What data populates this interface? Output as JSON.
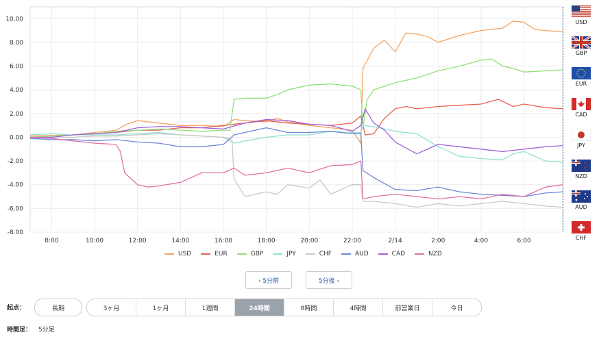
{
  "chart_data": {
    "type": "line",
    "ylim": [
      -8,
      11
    ],
    "y_ticks": [
      "10.00",
      "8.00",
      "6.00",
      "4.00",
      "2.00",
      "0.00",
      "-2.00",
      "-4.00",
      "-6.00",
      "-8.00"
    ],
    "x_ticks": [
      "8:00",
      "10:00",
      "12:00",
      "14:00",
      "16:00",
      "18:00",
      "20:00",
      "22:00",
      "2/14",
      "2:00",
      "4:00",
      "6:00"
    ],
    "x_range_hours": [
      7,
      31.8
    ],
    "grid": true,
    "series": [
      {
        "name": "USD",
        "color": "#f4a460",
        "points": [
          [
            7,
            0.1
          ],
          [
            9,
            0.2
          ],
          [
            10,
            0.4
          ],
          [
            11,
            0.6
          ],
          [
            11.5,
            1.1
          ],
          [
            12,
            1.4
          ],
          [
            13,
            1.2
          ],
          [
            14,
            1.0
          ],
          [
            15,
            1.0
          ],
          [
            16,
            0.9
          ],
          [
            16.5,
            1.5
          ],
          [
            17,
            1.4
          ],
          [
            18,
            1.3
          ],
          [
            18.5,
            1.6
          ],
          [
            19,
            1.3
          ],
          [
            20,
            1.0
          ],
          [
            21,
            0.8
          ],
          [
            22,
            0.6
          ],
          [
            22.4,
            -0.5
          ],
          [
            22.5,
            5.8
          ],
          [
            23,
            7.5
          ],
          [
            23.5,
            8.2
          ],
          [
            24,
            7.2
          ],
          [
            24.5,
            8.8
          ],
          [
            25,
            8.7
          ],
          [
            25.5,
            8.5
          ],
          [
            26,
            8.0
          ],
          [
            27,
            8.6
          ],
          [
            28,
            9.0
          ],
          [
            29,
            9.2
          ],
          [
            29.5,
            9.8
          ],
          [
            30,
            9.7
          ],
          [
            30.5,
            9.1
          ],
          [
            31,
            9.0
          ],
          [
            31.8,
            8.9
          ]
        ]
      },
      {
        "name": "EUR",
        "color": "#e46050",
        "points": [
          [
            7,
            0.0
          ],
          [
            9,
            0.2
          ],
          [
            10,
            0.3
          ],
          [
            11,
            0.4
          ],
          [
            12,
            0.6
          ],
          [
            13,
            0.6
          ],
          [
            14,
            0.8
          ],
          [
            15,
            0.8
          ],
          [
            16,
            1.0
          ],
          [
            17,
            1.2
          ],
          [
            18,
            1.4
          ],
          [
            19,
            1.2
          ],
          [
            20,
            1.1
          ],
          [
            21,
            1.0
          ],
          [
            22,
            1.2
          ],
          [
            22.4,
            1.8
          ],
          [
            22.6,
            0.2
          ],
          [
            23,
            0.3
          ],
          [
            23.5,
            1.6
          ],
          [
            24,
            2.4
          ],
          [
            24.5,
            2.6
          ],
          [
            25,
            2.4
          ],
          [
            26,
            2.6
          ],
          [
            27,
            2.7
          ],
          [
            28,
            2.8
          ],
          [
            28.8,
            3.2
          ],
          [
            29.5,
            2.6
          ],
          [
            30,
            2.8
          ],
          [
            31,
            2.5
          ],
          [
            31.8,
            2.4
          ]
        ]
      },
      {
        "name": "GBP",
        "color": "#8fe07a",
        "points": [
          [
            7,
            0.0
          ],
          [
            9,
            0.2
          ],
          [
            10,
            0.3
          ],
          [
            11,
            0.5
          ],
          [
            12,
            0.6
          ],
          [
            13,
            0.7
          ],
          [
            14,
            0.6
          ],
          [
            15,
            0.5
          ],
          [
            16,
            0.6
          ],
          [
            16.3,
            0.6
          ],
          [
            16.5,
            3.2
          ],
          [
            17,
            3.3
          ],
          [
            18,
            3.3
          ],
          [
            18.5,
            3.6
          ],
          [
            19,
            4.0
          ],
          [
            20,
            4.4
          ],
          [
            21,
            4.5
          ],
          [
            22,
            4.3
          ],
          [
            22.4,
            4.0
          ],
          [
            22.5,
            0.8
          ],
          [
            22.7,
            3.2
          ],
          [
            23,
            4.0
          ],
          [
            24,
            4.6
          ],
          [
            25,
            5.0
          ],
          [
            26,
            5.6
          ],
          [
            27,
            6.0
          ],
          [
            28,
            6.5
          ],
          [
            28.5,
            6.6
          ],
          [
            29,
            6.0
          ],
          [
            29.5,
            5.8
          ],
          [
            30,
            5.5
          ],
          [
            31,
            5.6
          ],
          [
            31.8,
            5.7
          ]
        ]
      },
      {
        "name": "JPY",
        "color": "#8fe0d0",
        "points": [
          [
            7,
            0.2
          ],
          [
            8,
            0.3
          ],
          [
            9,
            0.2
          ],
          [
            10,
            0.2
          ],
          [
            11,
            0.2
          ],
          [
            12,
            0.3
          ],
          [
            13,
            0.4
          ],
          [
            14,
            0.2
          ],
          [
            15,
            0.1
          ],
          [
            16,
            0.0
          ],
          [
            16.5,
            -0.5
          ],
          [
            17,
            -0.3
          ],
          [
            18,
            0.0
          ],
          [
            19,
            0.2
          ],
          [
            20,
            0.2
          ],
          [
            21,
            0.5
          ],
          [
            22,
            0.4
          ],
          [
            22.4,
            0.4
          ],
          [
            22.5,
            1.0
          ],
          [
            23,
            0.9
          ],
          [
            24,
            0.5
          ],
          [
            25,
            0.3
          ],
          [
            26,
            -0.8
          ],
          [
            27,
            -1.6
          ],
          [
            28,
            -1.8
          ],
          [
            29,
            -1.9
          ],
          [
            29.5,
            -1.4
          ],
          [
            30,
            -1.2
          ],
          [
            31,
            -2.0
          ],
          [
            31.8,
            -2.1
          ]
        ]
      },
      {
        "name": "CHF",
        "color": "#c8c8c8",
        "points": [
          [
            7,
            -0.1
          ],
          [
            8,
            0.0
          ],
          [
            9,
            0.0
          ],
          [
            10,
            0.1
          ],
          [
            11,
            0.1
          ],
          [
            12,
            0.2
          ],
          [
            13,
            0.3
          ],
          [
            14,
            0.2
          ],
          [
            15,
            0.1
          ],
          [
            16,
            0.0
          ],
          [
            16.4,
            -0.2
          ],
          [
            16.5,
            -3.5
          ],
          [
            17,
            -5.0
          ],
          [
            18,
            -4.6
          ],
          [
            18.5,
            -4.8
          ],
          [
            19,
            -4.0
          ],
          [
            20,
            -4.3
          ],
          [
            20.5,
            -3.6
          ],
          [
            21,
            -4.8
          ],
          [
            22,
            -4.0
          ],
          [
            22.4,
            -4.0
          ],
          [
            22.5,
            -5.4
          ],
          [
            23,
            -5.4
          ],
          [
            24,
            -5.6
          ],
          [
            25,
            -5.9
          ],
          [
            26,
            -5.6
          ],
          [
            27,
            -5.8
          ],
          [
            28,
            -5.6
          ],
          [
            29,
            -5.4
          ],
          [
            30,
            -5.6
          ],
          [
            31,
            -5.8
          ],
          [
            31.8,
            -5.9
          ]
        ]
      },
      {
        "name": "AUD",
        "color": "#6a86d8",
        "points": [
          [
            7,
            -0.1
          ],
          [
            8,
            -0.2
          ],
          [
            9,
            -0.2
          ],
          [
            10,
            -0.3
          ],
          [
            11,
            -0.2
          ],
          [
            12,
            -0.4
          ],
          [
            13,
            -0.5
          ],
          [
            14,
            -0.8
          ],
          [
            15,
            -0.8
          ],
          [
            16,
            -0.6
          ],
          [
            16.5,
            0.2
          ],
          [
            17,
            0.4
          ],
          [
            18,
            0.8
          ],
          [
            19,
            0.4
          ],
          [
            20,
            0.4
          ],
          [
            21,
            0.5
          ],
          [
            22,
            0.3
          ],
          [
            22.4,
            0.3
          ],
          [
            22.5,
            -2.8
          ],
          [
            23,
            -3.4
          ],
          [
            24,
            -4.4
          ],
          [
            25,
            -4.5
          ],
          [
            26,
            -4.2
          ],
          [
            27,
            -4.6
          ],
          [
            28,
            -4.8
          ],
          [
            29,
            -4.9
          ],
          [
            30,
            -5.0
          ],
          [
            31,
            -4.7
          ],
          [
            31.8,
            -4.6
          ]
        ]
      },
      {
        "name": "CAD",
        "color": "#a060d8",
        "points": [
          [
            7,
            0.0
          ],
          [
            8,
            0.0
          ],
          [
            9,
            0.2
          ],
          [
            10,
            0.3
          ],
          [
            11,
            0.4
          ],
          [
            12,
            0.8
          ],
          [
            13,
            0.9
          ],
          [
            14,
            0.9
          ],
          [
            15,
            0.8
          ],
          [
            16,
            0.7
          ],
          [
            17,
            1.2
          ],
          [
            18,
            1.5
          ],
          [
            19,
            1.4
          ],
          [
            20,
            1.1
          ],
          [
            21,
            1.0
          ],
          [
            22,
            0.5
          ],
          [
            22.4,
            1.0
          ],
          [
            22.6,
            2.4
          ],
          [
            23,
            1.2
          ],
          [
            23.5,
            0.6
          ],
          [
            24,
            -0.4
          ],
          [
            25,
            -1.4
          ],
          [
            26,
            -0.6
          ],
          [
            27,
            -0.8
          ],
          [
            28,
            -1.0
          ],
          [
            29,
            -1.2
          ],
          [
            30,
            -1.0
          ],
          [
            31,
            -0.8
          ],
          [
            31.8,
            -0.7
          ]
        ]
      },
      {
        "name": "NZD",
        "color": "#e070a8",
        "points": [
          [
            7,
            0.0
          ],
          [
            8,
            -0.1
          ],
          [
            9,
            -0.3
          ],
          [
            10,
            -0.5
          ],
          [
            11,
            -0.6
          ],
          [
            11.2,
            -1.2
          ],
          [
            11.4,
            -3.0
          ],
          [
            12,
            -4.0
          ],
          [
            12.5,
            -4.2
          ],
          [
            13,
            -4.1
          ],
          [
            14,
            -3.8
          ],
          [
            15,
            -3.0
          ],
          [
            16,
            -3.0
          ],
          [
            16.5,
            -2.6
          ],
          [
            17,
            -3.2
          ],
          [
            18,
            -3.0
          ],
          [
            19,
            -2.6
          ],
          [
            20,
            -3.0
          ],
          [
            21,
            -2.4
          ],
          [
            22,
            -2.3
          ],
          [
            22.4,
            -2.0
          ],
          [
            22.5,
            -5.2
          ],
          [
            23,
            -5.0
          ],
          [
            24,
            -4.8
          ],
          [
            25,
            -5.0
          ],
          [
            26,
            -5.2
          ],
          [
            27,
            -5.0
          ],
          [
            28,
            -5.2
          ],
          [
            29,
            -4.8
          ],
          [
            30,
            -5.0
          ],
          [
            31,
            -4.2
          ],
          [
            31.8,
            -4.0
          ]
        ]
      }
    ]
  },
  "flags": [
    {
      "code": "USD",
      "icon": "us-flag"
    },
    {
      "code": "GBP",
      "icon": "uk-flag"
    },
    {
      "code": "EUR",
      "icon": "eu-flag"
    },
    {
      "code": "CAD",
      "icon": "ca-flag"
    },
    {
      "code": "JPY",
      "icon": "jp-flag"
    },
    {
      "code": "NZD",
      "icon": "nz-flag"
    },
    {
      "code": "AUD",
      "icon": "au-flag"
    },
    {
      "code": "CHF",
      "icon": "ch-flag"
    }
  ],
  "nav": {
    "prev_label": "‹ 5分前",
    "next_label": "5分後 ›"
  },
  "start_point": {
    "label": "起点：",
    "long_label": "長期",
    "ranges": [
      "3ヶ月",
      "1ヶ月",
      "1週間",
      "24時間",
      "8時間",
      "4時間",
      "前営業日",
      "今日"
    ],
    "active": "24時間"
  },
  "timeframe": {
    "label": "時間足：",
    "value": "5分足"
  }
}
